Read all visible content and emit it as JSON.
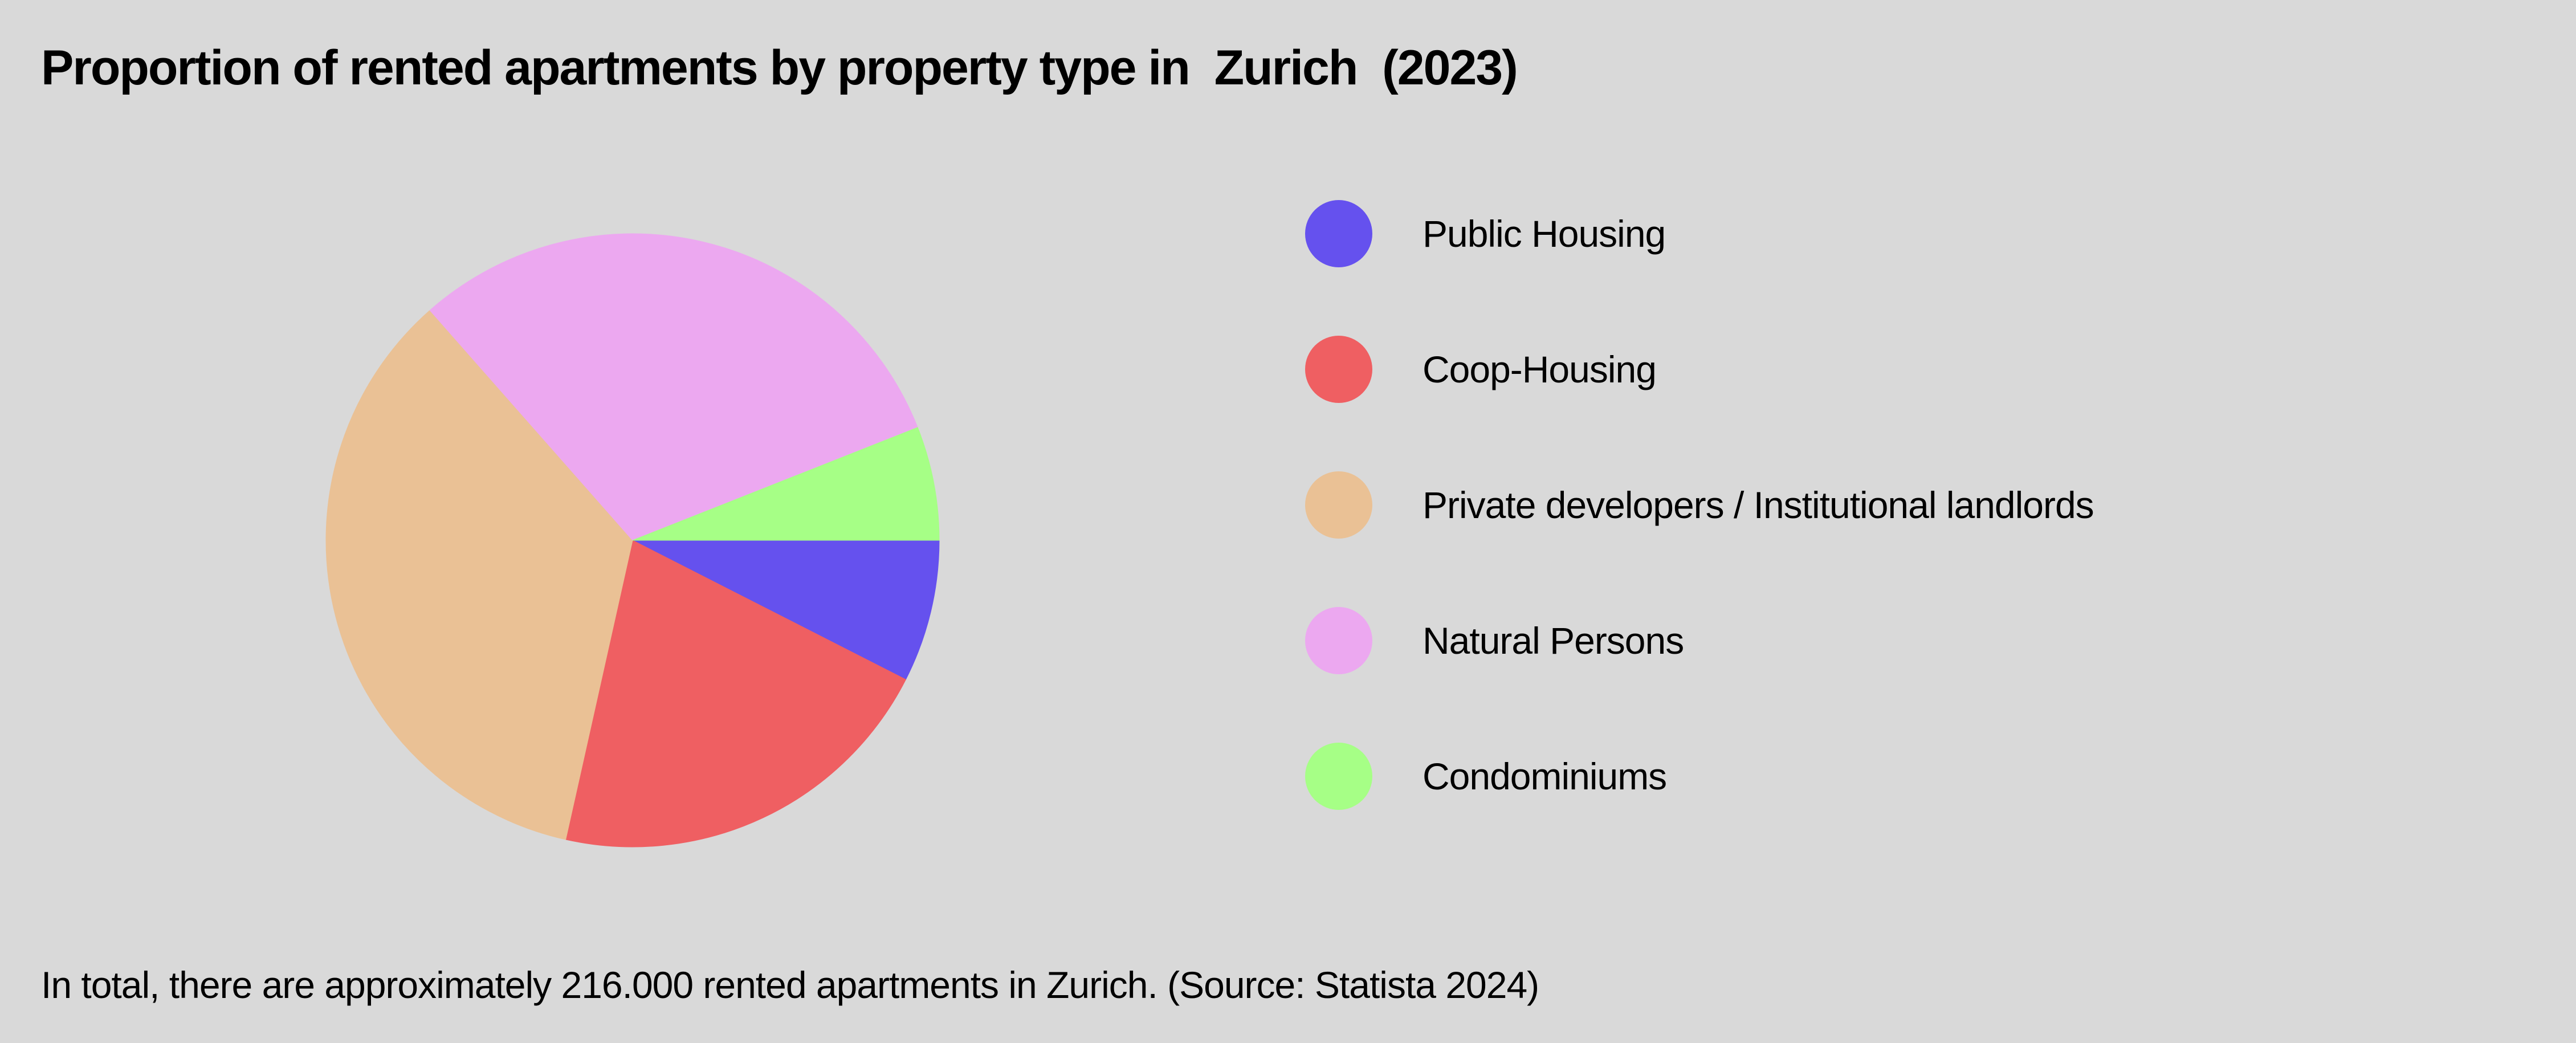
{
  "chart_data": {
    "type": "pie",
    "title": "Proportion of rented apartments by property type in  Zurich  (2023)",
    "legend_position": "right",
    "series": [
      {
        "name": "Public Housing",
        "value": 7.5,
        "color": "#6551ee"
      },
      {
        "name": "Coop-Housing",
        "value": 21,
        "color": "#ef5f62"
      },
      {
        "name": "Private developers / Institutional landlords",
        "value": 35,
        "color": "#eac195"
      },
      {
        "name": "Natural Persons",
        "value": 30.5,
        "color": "#eca8f0"
      },
      {
        "name": "Condominiums",
        "value": 6,
        "color": "#a6ff86"
      }
    ]
  },
  "footnote": "In total, there are approximately 216.000 rented apartments in Zurich. (Source: Statista 2024)"
}
